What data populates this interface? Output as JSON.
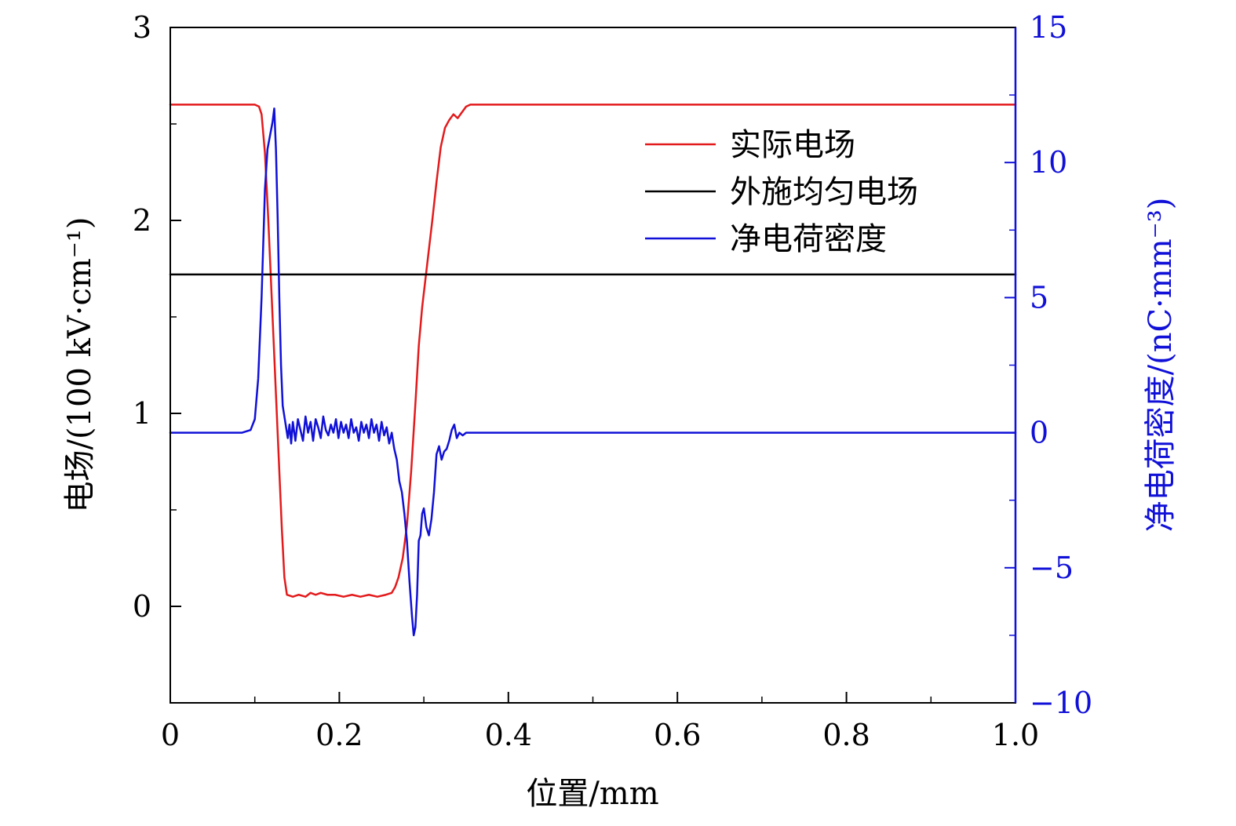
{
  "chart_data": {
    "type": "line",
    "title": "",
    "xlabel": "位置/mm",
    "ylabel_left": "电场/(100 kV·cm⁻¹)",
    "ylabel_right": "净电荷密度/(nC·mm⁻³)",
    "xlim": [
      0,
      1.0
    ],
    "ylim_left": [
      -0.5,
      3
    ],
    "ylim_right": [
      -10,
      15
    ],
    "x_ticks": [
      "0",
      "0.2",
      "0.4",
      "0.6",
      "0.8",
      "1.0"
    ],
    "y_left_ticks": [
      "0",
      "1",
      "2",
      "3"
    ],
    "y_right_ticks": [
      "−10",
      "−5",
      "0",
      "5",
      "10",
      "15"
    ],
    "grid": false,
    "legend_position": "top-right",
    "colors": {
      "red": "#e31a1c",
      "black": "#000000",
      "blue": "#1010d8"
    },
    "series": [
      {
        "name": "实际电场",
        "axis": "left",
        "color": "#e31a1c",
        "x": [
          0,
          0.095,
          0.1,
          0.105,
          0.108,
          0.112,
          0.116,
          0.12,
          0.124,
          0.128,
          0.132,
          0.135,
          0.138,
          0.145,
          0.152,
          0.16,
          0.166,
          0.172,
          0.178,
          0.186,
          0.195,
          0.205,
          0.215,
          0.225,
          0.235,
          0.245,
          0.255,
          0.262,
          0.266,
          0.27,
          0.275,
          0.28,
          0.285,
          0.29,
          0.294,
          0.298,
          0.302,
          0.306,
          0.31,
          0.315,
          0.32,
          0.325,
          0.33,
          0.335,
          0.34,
          0.345,
          0.35,
          0.355,
          0.36,
          1.0
        ],
        "values": [
          2.6,
          2.6,
          2.6,
          2.59,
          2.55,
          2.35,
          2.0,
          1.6,
          1.2,
          0.8,
          0.4,
          0.15,
          0.06,
          0.05,
          0.06,
          0.05,
          0.07,
          0.06,
          0.07,
          0.06,
          0.06,
          0.05,
          0.06,
          0.05,
          0.06,
          0.05,
          0.06,
          0.07,
          0.1,
          0.15,
          0.25,
          0.42,
          0.7,
          1.05,
          1.35,
          1.55,
          1.7,
          1.85,
          2.0,
          2.2,
          2.38,
          2.48,
          2.52,
          2.55,
          2.53,
          2.56,
          2.59,
          2.6,
          2.6,
          2.6
        ]
      },
      {
        "name": "外施均匀电场",
        "axis": "left",
        "color": "#000000",
        "x": [
          0,
          1.0
        ],
        "values": [
          1.72,
          1.72
        ]
      },
      {
        "name": "净电荷密度",
        "axis": "right",
        "color": "#1010d8",
        "x": [
          0,
          0.085,
          0.095,
          0.1,
          0.104,
          0.108,
          0.112,
          0.115,
          0.118,
          0.121,
          0.123,
          0.125,
          0.127,
          0.129,
          0.131,
          0.133,
          0.135,
          0.137,
          0.139,
          0.141,
          0.143,
          0.145,
          0.148,
          0.151,
          0.154,
          0.157,
          0.16,
          0.163,
          0.166,
          0.169,
          0.172,
          0.175,
          0.178,
          0.181,
          0.184,
          0.187,
          0.19,
          0.193,
          0.196,
          0.199,
          0.202,
          0.205,
          0.208,
          0.211,
          0.214,
          0.217,
          0.22,
          0.223,
          0.226,
          0.229,
          0.232,
          0.235,
          0.238,
          0.241,
          0.244,
          0.247,
          0.25,
          0.253,
          0.256,
          0.259,
          0.262,
          0.265,
          0.268,
          0.271,
          0.274,
          0.277,
          0.28,
          0.283,
          0.286,
          0.288,
          0.29,
          0.292,
          0.294,
          0.296,
          0.298,
          0.3,
          0.303,
          0.306,
          0.309,
          0.312,
          0.315,
          0.318,
          0.321,
          0.324,
          0.327,
          0.33,
          0.333,
          0.336,
          0.339,
          0.342,
          0.346,
          0.35,
          0.355,
          0.36,
          0.37,
          1.0
        ],
        "values": [
          0,
          0,
          0.1,
          0.5,
          2.0,
          5.0,
          9.0,
          10.5,
          11.0,
          11.5,
          12.0,
          10.5,
          8.0,
          5.0,
          2.5,
          1.0,
          0.6,
          0.2,
          -0.2,
          0.3,
          -0.4,
          0.4,
          -0.3,
          0.5,
          0.1,
          -0.3,
          0.6,
          0.0,
          0.4,
          -0.3,
          0.5,
          0.2,
          -0.2,
          0.6,
          0.1,
          -0.1,
          0.3,
          0.0,
          0.5,
          -0.2,
          0.4,
          0.0,
          0.3,
          -0.2,
          0.5,
          0.0,
          0.2,
          -0.3,
          0.4,
          0.0,
          0.3,
          -0.2,
          0.5,
          0.0,
          0.3,
          -0.3,
          0.4,
          -0.1,
          0.2,
          -0.4,
          0.0,
          -0.6,
          -1.0,
          -1.8,
          -2.2,
          -3.0,
          -4.0,
          -5.5,
          -6.8,
          -7.5,
          -7.2,
          -6.0,
          -4.0,
          -3.8,
          -3.0,
          -2.8,
          -3.5,
          -3.8,
          -3.2,
          -2.2,
          -0.8,
          -0.5,
          -1.0,
          -0.7,
          -0.6,
          -0.3,
          0.1,
          0.3,
          -0.2,
          0.0,
          -0.1,
          0.0,
          0.0,
          0.0,
          0.0,
          0.0
        ]
      }
    ]
  }
}
